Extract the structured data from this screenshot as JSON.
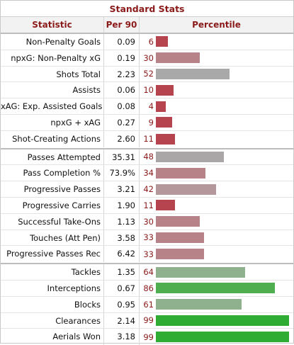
{
  "title": "Standard Stats",
  "headers": {
    "statistic": "Statistic",
    "per90": "Per 90",
    "percentile": "Percentile"
  },
  "groups": [
    {
      "rows": [
        {
          "stat": "Non-Penalty Goals",
          "per90": "0.09",
          "pct": 6,
          "color": "#b6444f"
        },
        {
          "stat": "npxG: Non-Penalty xG",
          "per90": "0.19",
          "pct": 30,
          "color": "#b88289"
        },
        {
          "stat": "Shots Total",
          "per90": "2.23",
          "pct": 52,
          "color": "#a9a9a9"
        },
        {
          "stat": "Assists",
          "per90": "0.06",
          "pct": 10,
          "color": "#b6444f"
        },
        {
          "stat": "xAG: Exp. Assisted Goals",
          "per90": "0.08",
          "pct": 4,
          "color": "#b6444f"
        },
        {
          "stat": "npxG + xAG",
          "per90": "0.27",
          "pct": 9,
          "color": "#b6444f"
        },
        {
          "stat": "Shot-Creating Actions",
          "per90": "2.60",
          "pct": 11,
          "color": "#b6444f"
        }
      ]
    },
    {
      "rows": [
        {
          "stat": "Passes Attempted",
          "per90": "35.31",
          "pct": 48,
          "color": "#aaa6a7"
        },
        {
          "stat": "Pass Completion %",
          "per90": "73.9%",
          "pct": 34,
          "color": "#b88289"
        },
        {
          "stat": "Progressive Passes",
          "per90": "3.21",
          "pct": 42,
          "color": "#b4979b"
        },
        {
          "stat": "Progressive Carries",
          "per90": "1.90",
          "pct": 11,
          "color": "#b6444f"
        },
        {
          "stat": "Successful Take-Ons",
          "per90": "1.13",
          "pct": 30,
          "color": "#b88289"
        },
        {
          "stat": "Touches (Att Pen)",
          "per90": "3.58",
          "pct": 33,
          "color": "#b88289"
        },
        {
          "stat": "Progressive Passes Rec",
          "per90": "6.42",
          "pct": 33,
          "color": "#b88289"
        }
      ]
    },
    {
      "rows": [
        {
          "stat": "Tackles",
          "per90": "1.35",
          "pct": 64,
          "color": "#8fb18e"
        },
        {
          "stat": "Interceptions",
          "per90": "0.67",
          "pct": 86,
          "color": "#4fae4f"
        },
        {
          "stat": "Blocks",
          "per90": "0.95",
          "pct": 61,
          "color": "#8fb18e"
        },
        {
          "stat": "Clearances",
          "per90": "2.14",
          "pct": 99,
          "color": "#2eac33"
        },
        {
          "stat": "Aerials Won",
          "per90": "3.18",
          "pct": 99,
          "color": "#2eac33"
        }
      ]
    }
  ]
}
